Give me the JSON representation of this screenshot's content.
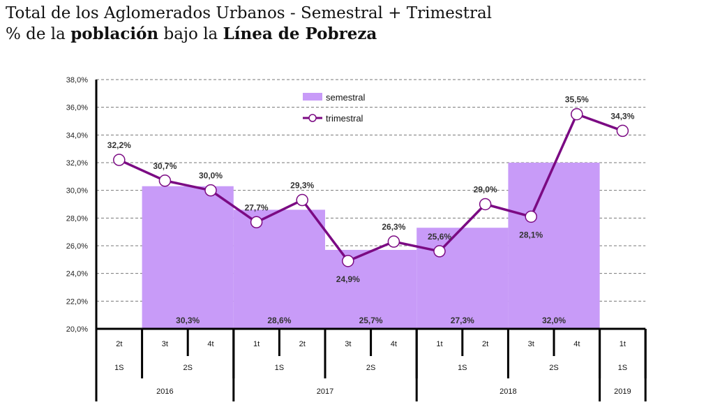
{
  "title": {
    "line1": "Total de los Aglomerados Urbanos - Semestral + Trimestral",
    "line2_pre": "% de la ",
    "line2_b1": "población",
    "line2_mid": " bajo la ",
    "line2_b2": "Línea de Pobreza"
  },
  "colors": {
    "bar": "#c89bf8",
    "line": "#7b0a83",
    "marker_fill": "#ffffff",
    "label": "#333333",
    "grid": "#777777"
  },
  "chart_data": {
    "type": "bar+line",
    "ylim": [
      20,
      38
    ],
    "yticks": [
      "20,0%",
      "22,0%",
      "24,0%",
      "26,0%",
      "28,0%",
      "30,0%",
      "32,0%",
      "34,0%",
      "36,0%",
      "38,0%"
    ],
    "yticks_values": [
      20,
      22,
      24,
      26,
      28,
      30,
      32,
      34,
      36,
      38
    ],
    "grid": true,
    "legend_position": "top-center",
    "quarters": [
      "2t",
      "3t",
      "4t",
      "1t",
      "2t",
      "3t",
      "4t",
      "1t",
      "2t",
      "3t",
      "4t",
      "1t"
    ],
    "semesters": [
      {
        "label": "1S",
        "span": 1
      },
      {
        "label": "2S",
        "span": 2
      },
      {
        "label": "1S",
        "span": 2
      },
      {
        "label": "2S",
        "span": 2
      },
      {
        "label": "1S",
        "span": 2
      },
      {
        "label": "2S",
        "span": 2
      },
      {
        "label": "1S",
        "span": 1
      }
    ],
    "years": [
      {
        "label": "2016",
        "span": 3
      },
      {
        "label": "2017",
        "span": 4
      },
      {
        "label": "2018",
        "span": 4
      },
      {
        "label": "2019",
        "span": 1
      }
    ],
    "series": [
      {
        "name": "semestral",
        "type": "bar",
        "segments": [
          {
            "start": 1,
            "span": 2,
            "value": 30.3,
            "label": "30,3%"
          },
          {
            "start": 3,
            "span": 2,
            "value": 28.6,
            "label": "28,6%"
          },
          {
            "start": 5,
            "span": 2,
            "value": 25.7,
            "label": "25,7%"
          },
          {
            "start": 7,
            "span": 2,
            "value": 27.3,
            "label": "27,3%"
          },
          {
            "start": 9,
            "span": 2,
            "value": 32.0,
            "label": "32,0%"
          }
        ]
      },
      {
        "name": "trimestral",
        "type": "line",
        "values": [
          32.2,
          30.7,
          30.0,
          27.7,
          29.3,
          24.9,
          26.3,
          25.6,
          29.0,
          28.1,
          35.5,
          34.3
        ],
        "labels": [
          "32,2%",
          "30,7%",
          "30,0%",
          "27,7%",
          "29,3%",
          "24,9%",
          "26,3%",
          "25,6%",
          "29,0%",
          "28,1%",
          "35,5%",
          "34,3%"
        ],
        "label_side": [
          "above",
          "above",
          "above",
          "above",
          "above",
          "below",
          "above",
          "above",
          "above",
          "below",
          "above",
          "above"
        ]
      }
    ]
  }
}
